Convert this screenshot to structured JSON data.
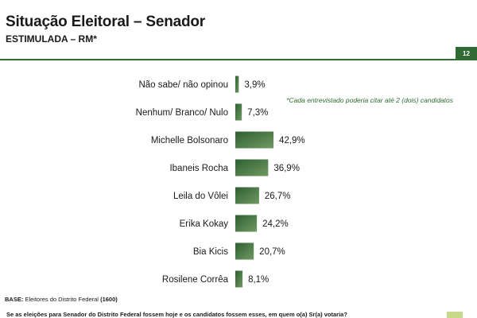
{
  "header": {
    "title": "Situação Eleitoral – Senador",
    "subtitle": "ESTIMULADA – RM*",
    "note": "*Cada entrevistado poderia citar até 2 (dois) candidatos",
    "page_number": "12"
  },
  "footer": {
    "base_label": "BASE:",
    "base_text": "Eleitores do Distrito Federal",
    "base_count": "(1600)",
    "question": "Se as eleições para Senador do Distrito Federal fossem hoje e os candidatos fossem esses, em quem o(a) Sr(a) votaria?"
  },
  "colors": {
    "bar_dark": "#2f5f31",
    "bar_light": "#6f9a62",
    "accent": "#2f6b32"
  },
  "chart_data": {
    "type": "bar",
    "orientation": "horizontal",
    "categories": [
      "Não sabe/ não opinou",
      "Nenhum/ Branco/ Nulo",
      "Michelle Bolsonaro",
      "Ibaneis Rocha",
      "Leila do Vôlei",
      "Erika Kokay",
      "Bia Kicis",
      "Rosilene Corrêa"
    ],
    "values": [
      3.9,
      7.3,
      42.9,
      36.9,
      26.7,
      24.2,
      20.7,
      8.1
    ],
    "value_labels": [
      "3,9%",
      "7,3%",
      "42,9%",
      "36,9%",
      "26,7%",
      "24,2%",
      "20,7%",
      "8,1%"
    ],
    "xlim": [
      0,
      100
    ],
    "grid": false,
    "legend": "none"
  }
}
